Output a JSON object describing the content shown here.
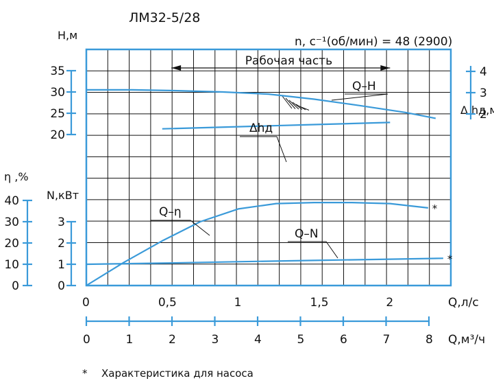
{
  "title": "ЛМ32-5/28",
  "speed_label": "n, с⁻¹(об/мин) = 48 (2900)",
  "operating_range_label": "Рабочая часть",
  "footnote_star": "*",
  "footnote": "Характеристика для насоса",
  "colors": {
    "curve": "#3a9ad9",
    "grid": "#111111",
    "text": "#111111"
  },
  "chart_data": {
    "type": "line",
    "grid": true,
    "x": {
      "label": "Q,л/с",
      "range": [
        0,
        2.4
      ],
      "ticks": [
        0,
        0.5,
        1,
        1.5,
        2
      ],
      "tick_labels": [
        "0",
        "0,5",
        "1",
        "1,5",
        "2"
      ]
    },
    "x2": {
      "label": "Q,м³/ч",
      "range": [
        0,
        8
      ],
      "ticks": [
        0,
        1,
        2,
        3,
        4,
        5,
        6,
        7,
        8
      ],
      "tick_labels": [
        "0",
        "1",
        "2",
        "3",
        "4",
        "5",
        "6",
        "7",
        "8"
      ]
    },
    "axes": {
      "H": {
        "label": "H,м",
        "range": [
          20,
          35
        ],
        "ticks": [
          "20",
          "25",
          "30",
          "35"
        ]
      },
      "N": {
        "label": "N,кВт",
        "range": [
          0,
          3
        ],
        "ticks": [
          "0",
          "1",
          "2",
          "3"
        ]
      },
      "eta": {
        "label": "η ,%",
        "range": [
          0,
          40
        ],
        "ticks": [
          "0",
          "10",
          "20",
          "30",
          "40"
        ]
      },
      "dh": {
        "label": "Δ hд,м",
        "range": [
          2,
          4
        ],
        "ticks": [
          "2",
          "3",
          "4"
        ]
      }
    },
    "operating_range": [
      0.56,
      2.0
    ],
    "series": [
      {
        "name": "Q–H",
        "axis": "H",
        "x": [
          0,
          0.3,
          0.6,
          0.9,
          1.2,
          1.5,
          1.8,
          2.1,
          2.3
        ],
        "y": [
          30.5,
          30.5,
          30.3,
          30.0,
          29.5,
          28.3,
          26.8,
          25.2,
          23.8
        ]
      },
      {
        "name": "Δhд",
        "axis": "dh",
        "x": [
          0.5,
          1.0,
          1.5,
          2.0
        ],
        "y": [
          1.3,
          1.4,
          1.5,
          1.6
        ]
      },
      {
        "name": "Q–η",
        "axis": "eta",
        "x": [
          0,
          0.25,
          0.5,
          0.75,
          1.0,
          1.25,
          1.5,
          1.75,
          2.0,
          2.25
        ],
        "y": [
          0,
          11,
          21,
          30,
          36,
          38.5,
          39,
          39,
          38.5,
          36.5
        ],
        "marker": "*"
      },
      {
        "name": "Q–N",
        "axis": "N",
        "x": [
          0,
          0.5,
          1.0,
          1.5,
          2.0,
          2.35
        ],
        "y": [
          1.0,
          1.05,
          1.12,
          1.18,
          1.24,
          1.28
        ],
        "marker": "*"
      }
    ]
  }
}
